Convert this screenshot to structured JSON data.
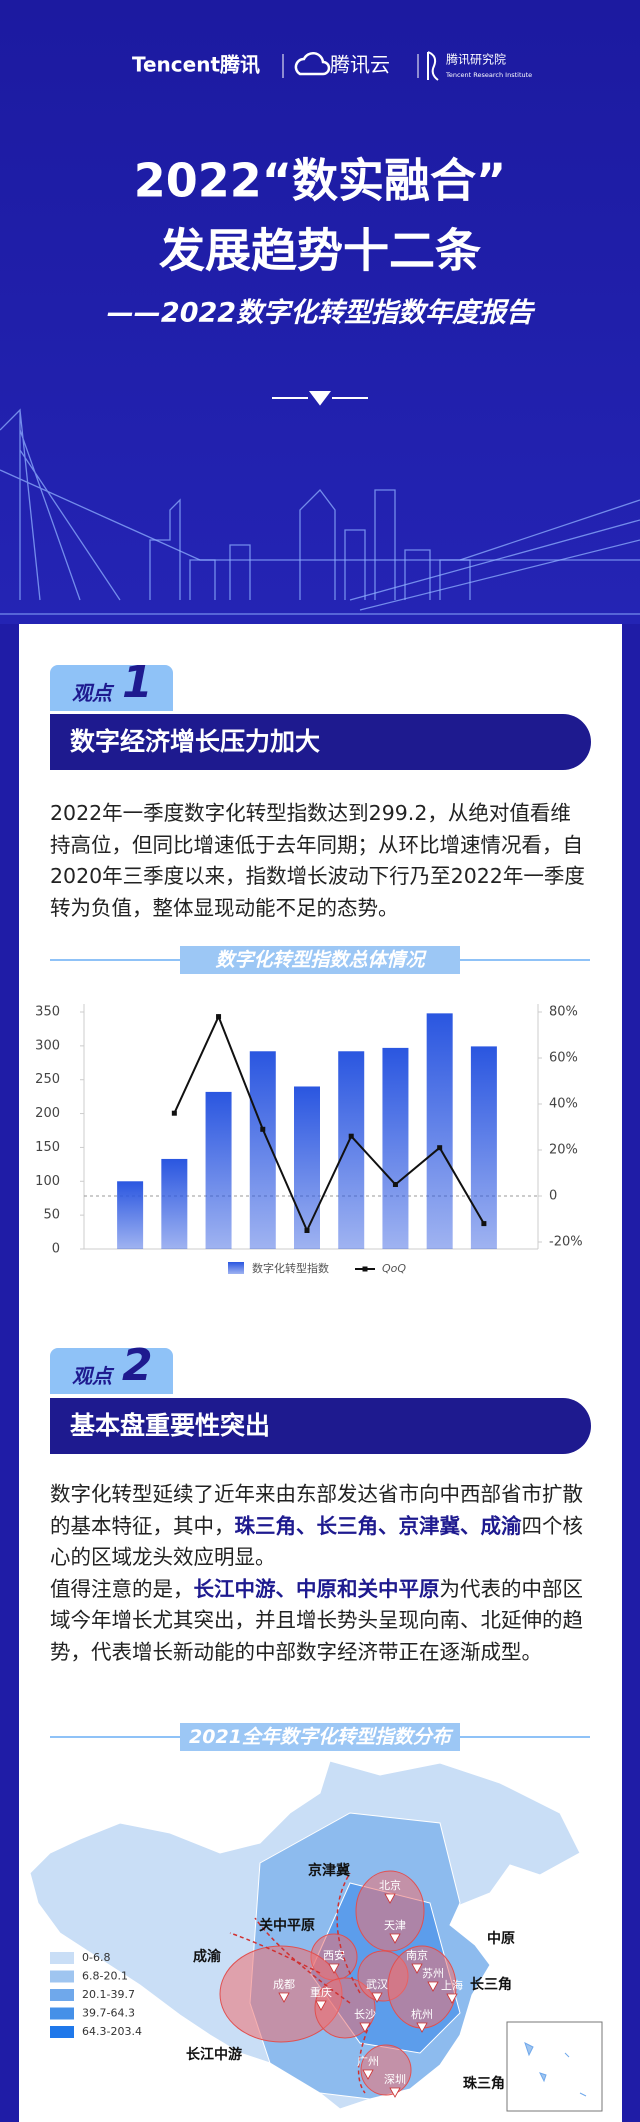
{
  "header": {
    "logos": [
      "Tencent腾讯",
      "腾讯云",
      "腾讯研究院",
      "Tencent Research Institute"
    ],
    "title_lines": [
      "2022“数实融合”",
      "发展趋势十二条",
      "——2022数字化转型指数年度报告"
    ]
  },
  "sections": [
    {
      "badge": "观点",
      "number": "1",
      "heading": "数字经济增长压力加大",
      "paragraphs": [
        [
          {
            "text": "2022年一季度数字化转型指数达到299.2，从绝对值看维持高位，但同比增速低于去年同期；从环比增速情况看，自2020年三季度以来，指数增长波动下行乃至2022年一季度转为负值，整体显现动能不足的态势。"
          }
        ]
      ]
    },
    {
      "badge": "观点",
      "number": "2",
      "heading": "基本盘重要性突出",
      "paragraphs": [
        [
          {
            "text": "数字化转型延续了近年来由东部发达省市向中西部省市扩散的基本特征，其中，"
          },
          {
            "text": "珠三角、长三角、京津冀、成渝",
            "bold": true
          },
          {
            "text": "四个核心的区域龙头效应明显。"
          }
        ],
        [
          {
            "text": "值得注意的是，"
          },
          {
            "text": "长江中游、中原和关中平原",
            "bold": true
          },
          {
            "text": "为代表的中部区域今年增长尤其突出，并且增长势头呈现向南、北延伸的趋势，代表增长新动能的中部数字经济带正在逐渐成型。"
          }
        ]
      ]
    }
  ],
  "chart_data": {
    "type": "bar",
    "title": "数字化转型指数总体情况",
    "categories": [
      null,
      null,
      null,
      null,
      null,
      null,
      null,
      null,
      null
    ],
    "series": [
      {
        "name": "数字化转型指数",
        "type": "bar",
        "color": "#2a56e0",
        "values": [
          100,
          133,
          232,
          292,
          240,
          292,
          297,
          348,
          299.2
        ]
      },
      {
        "name": "QoQ",
        "type": "line",
        "axis": "y2",
        "color": "#111111",
        "values": [
          null,
          36,
          78,
          29,
          -15,
          26,
          5,
          21,
          -12
        ]
      }
    ],
    "ylim": [
      0,
      350
    ],
    "yticks": [
      0,
      50,
      100,
      150,
      200,
      250,
      300,
      350
    ],
    "y2lim": [
      -20,
      80
    ],
    "y2ticks": [
      {
        "value": -20,
        "label": "-20%"
      },
      0,
      {
        "value": 20,
        "label": "20%"
      },
      {
        "value": 40,
        "label": "40%"
      },
      {
        "value": 60,
        "label": "60%"
      },
      {
        "value": 80,
        "label": "80%"
      }
    ]
  },
  "map": {
    "title": "2021全年数字化转型指数分布图",
    "regions": [
      "京津冀",
      "关中平原",
      "中原",
      "长三角",
      "成渝",
      "长江中游",
      "珠三角"
    ],
    "cities": [
      "北京",
      "天津",
      "西安",
      "南京",
      "苏州",
      "上海",
      "成都",
      "重庆",
      "武汉",
      "长沙",
      "杭州",
      "广州",
      "深圳"
    ],
    "legend": [
      "0-6.8",
      "6.8-20.1",
      "20.1-39.7",
      "39.7-64.3",
      "64.3-203.4"
    ],
    "colors": [
      "#c9def6",
      "#9fc5f0",
      "#6fa8eb",
      "#4590e8",
      "#1f78ea"
    ]
  }
}
